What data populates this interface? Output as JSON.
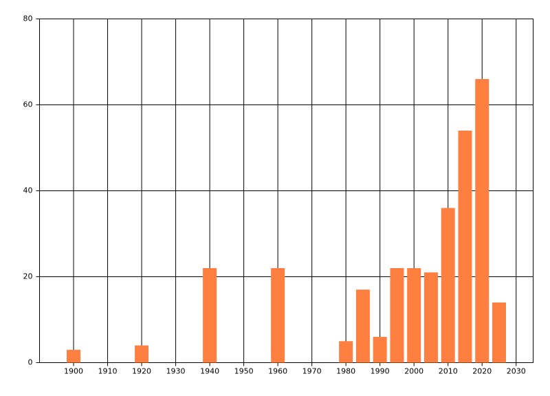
{
  "chart_data": {
    "type": "bar",
    "x": [
      1900,
      1920,
      1940,
      1960,
      1980,
      1985,
      1990,
      1995,
      2000,
      2005,
      2010,
      2015,
      2020,
      2025
    ],
    "values": [
      3,
      4,
      22,
      22,
      5,
      17,
      6,
      22,
      22,
      21,
      36,
      54,
      66,
      14
    ],
    "color": "#ff7f40",
    "xlim": [
      1890,
      2035
    ],
    "xticks": [
      1900,
      1910,
      1920,
      1930,
      1940,
      1950,
      1960,
      1970,
      1980,
      1990,
      2000,
      2010,
      2020,
      2030
    ],
    "ylim": [
      0,
      80
    ],
    "yticks": [
      0,
      20,
      40,
      60,
      80
    ],
    "grid": true
  }
}
